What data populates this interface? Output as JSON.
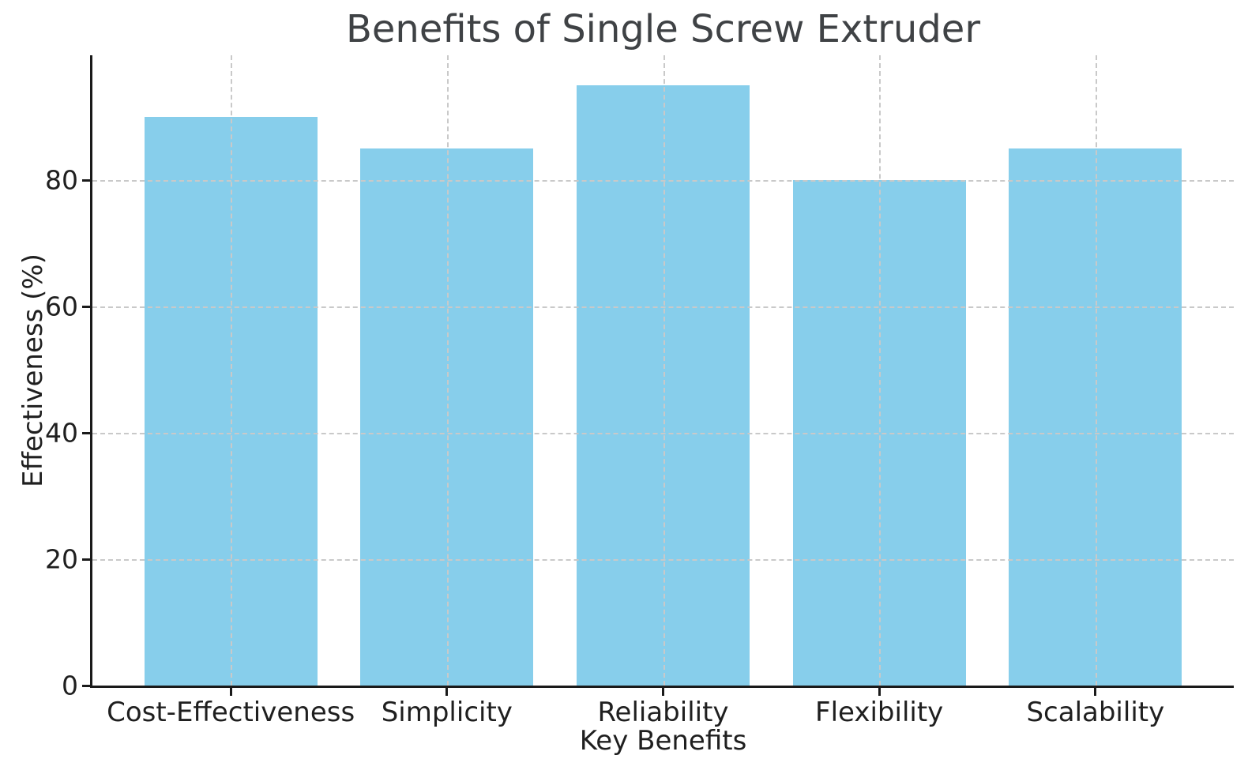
{
  "chart_data": {
    "type": "bar",
    "title": "Benefits of Single Screw Extruder",
    "categories": [
      "Cost-Effectiveness",
      "Simplicity",
      "Reliability",
      "Flexibility",
      "Scalability"
    ],
    "values": [
      90,
      85,
      95,
      80,
      85
    ],
    "xlabel": "Key Benefits",
    "ylabel": "Effectiveness (%)",
    "ylim": [
      0,
      99.75
    ],
    "xlim": [
      -0.64,
      4.64
    ],
    "yticks": [
      0,
      20,
      40,
      60,
      80
    ],
    "bar_width_units": 0.8,
    "bar_color": "#87CEEB",
    "grid": true,
    "grid_style": "dashed",
    "grid_color": "#c9c9c9",
    "grid_above_bars": true,
    "axis_color": "#1a1a1a",
    "tick_label_color": "#1f1f1f",
    "title_color": "#3f4245",
    "spines": [
      "left",
      "bottom"
    ],
    "legend": "none"
  }
}
